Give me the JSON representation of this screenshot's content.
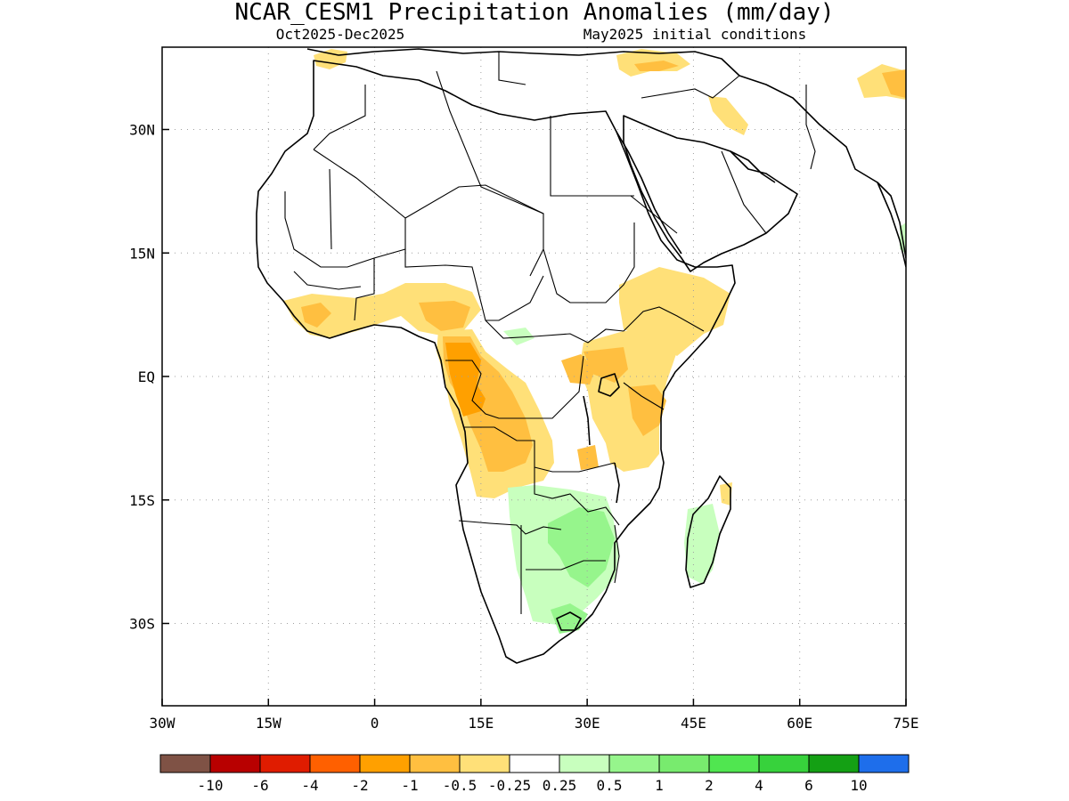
{
  "title": "NCAR_CESM1 Precipitation Anomalies (mm/day)",
  "subtitle_left": "Oct2025-Dec2025",
  "subtitle_right": "May2025 initial conditions",
  "lat_ticks": [
    {
      "lat": 30,
      "label": "30N"
    },
    {
      "lat": 15,
      "label": "15N"
    },
    {
      "lat": 0,
      "label": "EQ"
    },
    {
      "lat": -15,
      "label": "15S"
    },
    {
      "lat": -30,
      "label": "30S"
    }
  ],
  "lon_ticks": [
    {
      "lon": -30,
      "label": "30W"
    },
    {
      "lon": -15,
      "label": "15W"
    },
    {
      "lon": 0,
      "label": "0"
    },
    {
      "lon": 15,
      "label": "15E"
    },
    {
      "lon": 30,
      "label": "30E"
    },
    {
      "lon": 45,
      "label": "45E"
    },
    {
      "lon": 60,
      "label": "60E"
    },
    {
      "lon": 75,
      "label": "75E"
    }
  ],
  "lon_range": [
    -30,
    75
  ],
  "lat_range": [
    -40,
    40
  ],
  "grid": "dotted",
  "colorbar": {
    "colors": [
      "#7f5245",
      "#b80000",
      "#e01c00",
      "#ff6000",
      "#ffa000",
      "#ffbf40",
      "#ffe078",
      "#ffffff",
      "#c8ffbe",
      "#96f58c",
      "#78eb6e",
      "#50e650",
      "#37d23c",
      "#14a014",
      "#1e6eeb"
    ],
    "labels": [
      "-10",
      "-6",
      "-4",
      "-2",
      "-1",
      "-0.5",
      "-0.25",
      "0.25",
      "0.5",
      "1",
      "2",
      "4",
      "6",
      "10"
    ]
  }
}
